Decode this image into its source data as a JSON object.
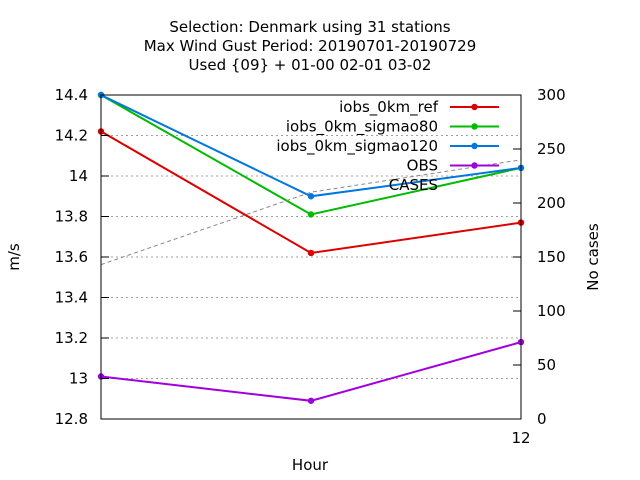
{
  "chart_data": {
    "type": "line",
    "title": [
      "Selection: Denmark using    31 stations",
      "Max Wind Gust   Period: 20190701-20190729",
      "Used {09} + 01-00 02-01 03-02"
    ],
    "xlabel": "Hour",
    "ylabel": "m/s",
    "y2label": "No cases",
    "x": [
      0,
      6,
      12
    ],
    "xlim": [
      0,
      12
    ],
    "x_ticks": [
      12
    ],
    "ylim": [
      12.8,
      14.4
    ],
    "y_ticks": [
      "12.8",
      "13",
      "13.2",
      "13.4",
      "13.6",
      "13.8",
      "14",
      "14.2",
      "14.4"
    ],
    "y2lim": [
      0,
      300
    ],
    "y2_ticks": [
      "0",
      "50",
      "100",
      "150",
      "200",
      "250",
      "300"
    ],
    "grid": true,
    "legend_position": "top-right",
    "series": [
      {
        "name": "iobs_0km_ref",
        "color": "#dd0000",
        "values": [
          14.22,
          13.62,
          13.77
        ]
      },
      {
        "name": "iobs_0km_sigmao80",
        "color": "#00bb00",
        "values": [
          14.4,
          13.81,
          14.04
        ]
      },
      {
        "name": "iobs_0km_sigmao120",
        "color": "#0077dd",
        "values": [
          14.4,
          13.9,
          14.04
        ]
      },
      {
        "name": "OBS",
        "color": "#a000dd",
        "values": [
          13.01,
          12.89,
          13.18
        ]
      },
      {
        "name": "CASES",
        "color": "#888888",
        "axis": "y2",
        "dashed": true,
        "values": [
          143,
          210,
          240
        ]
      }
    ]
  }
}
